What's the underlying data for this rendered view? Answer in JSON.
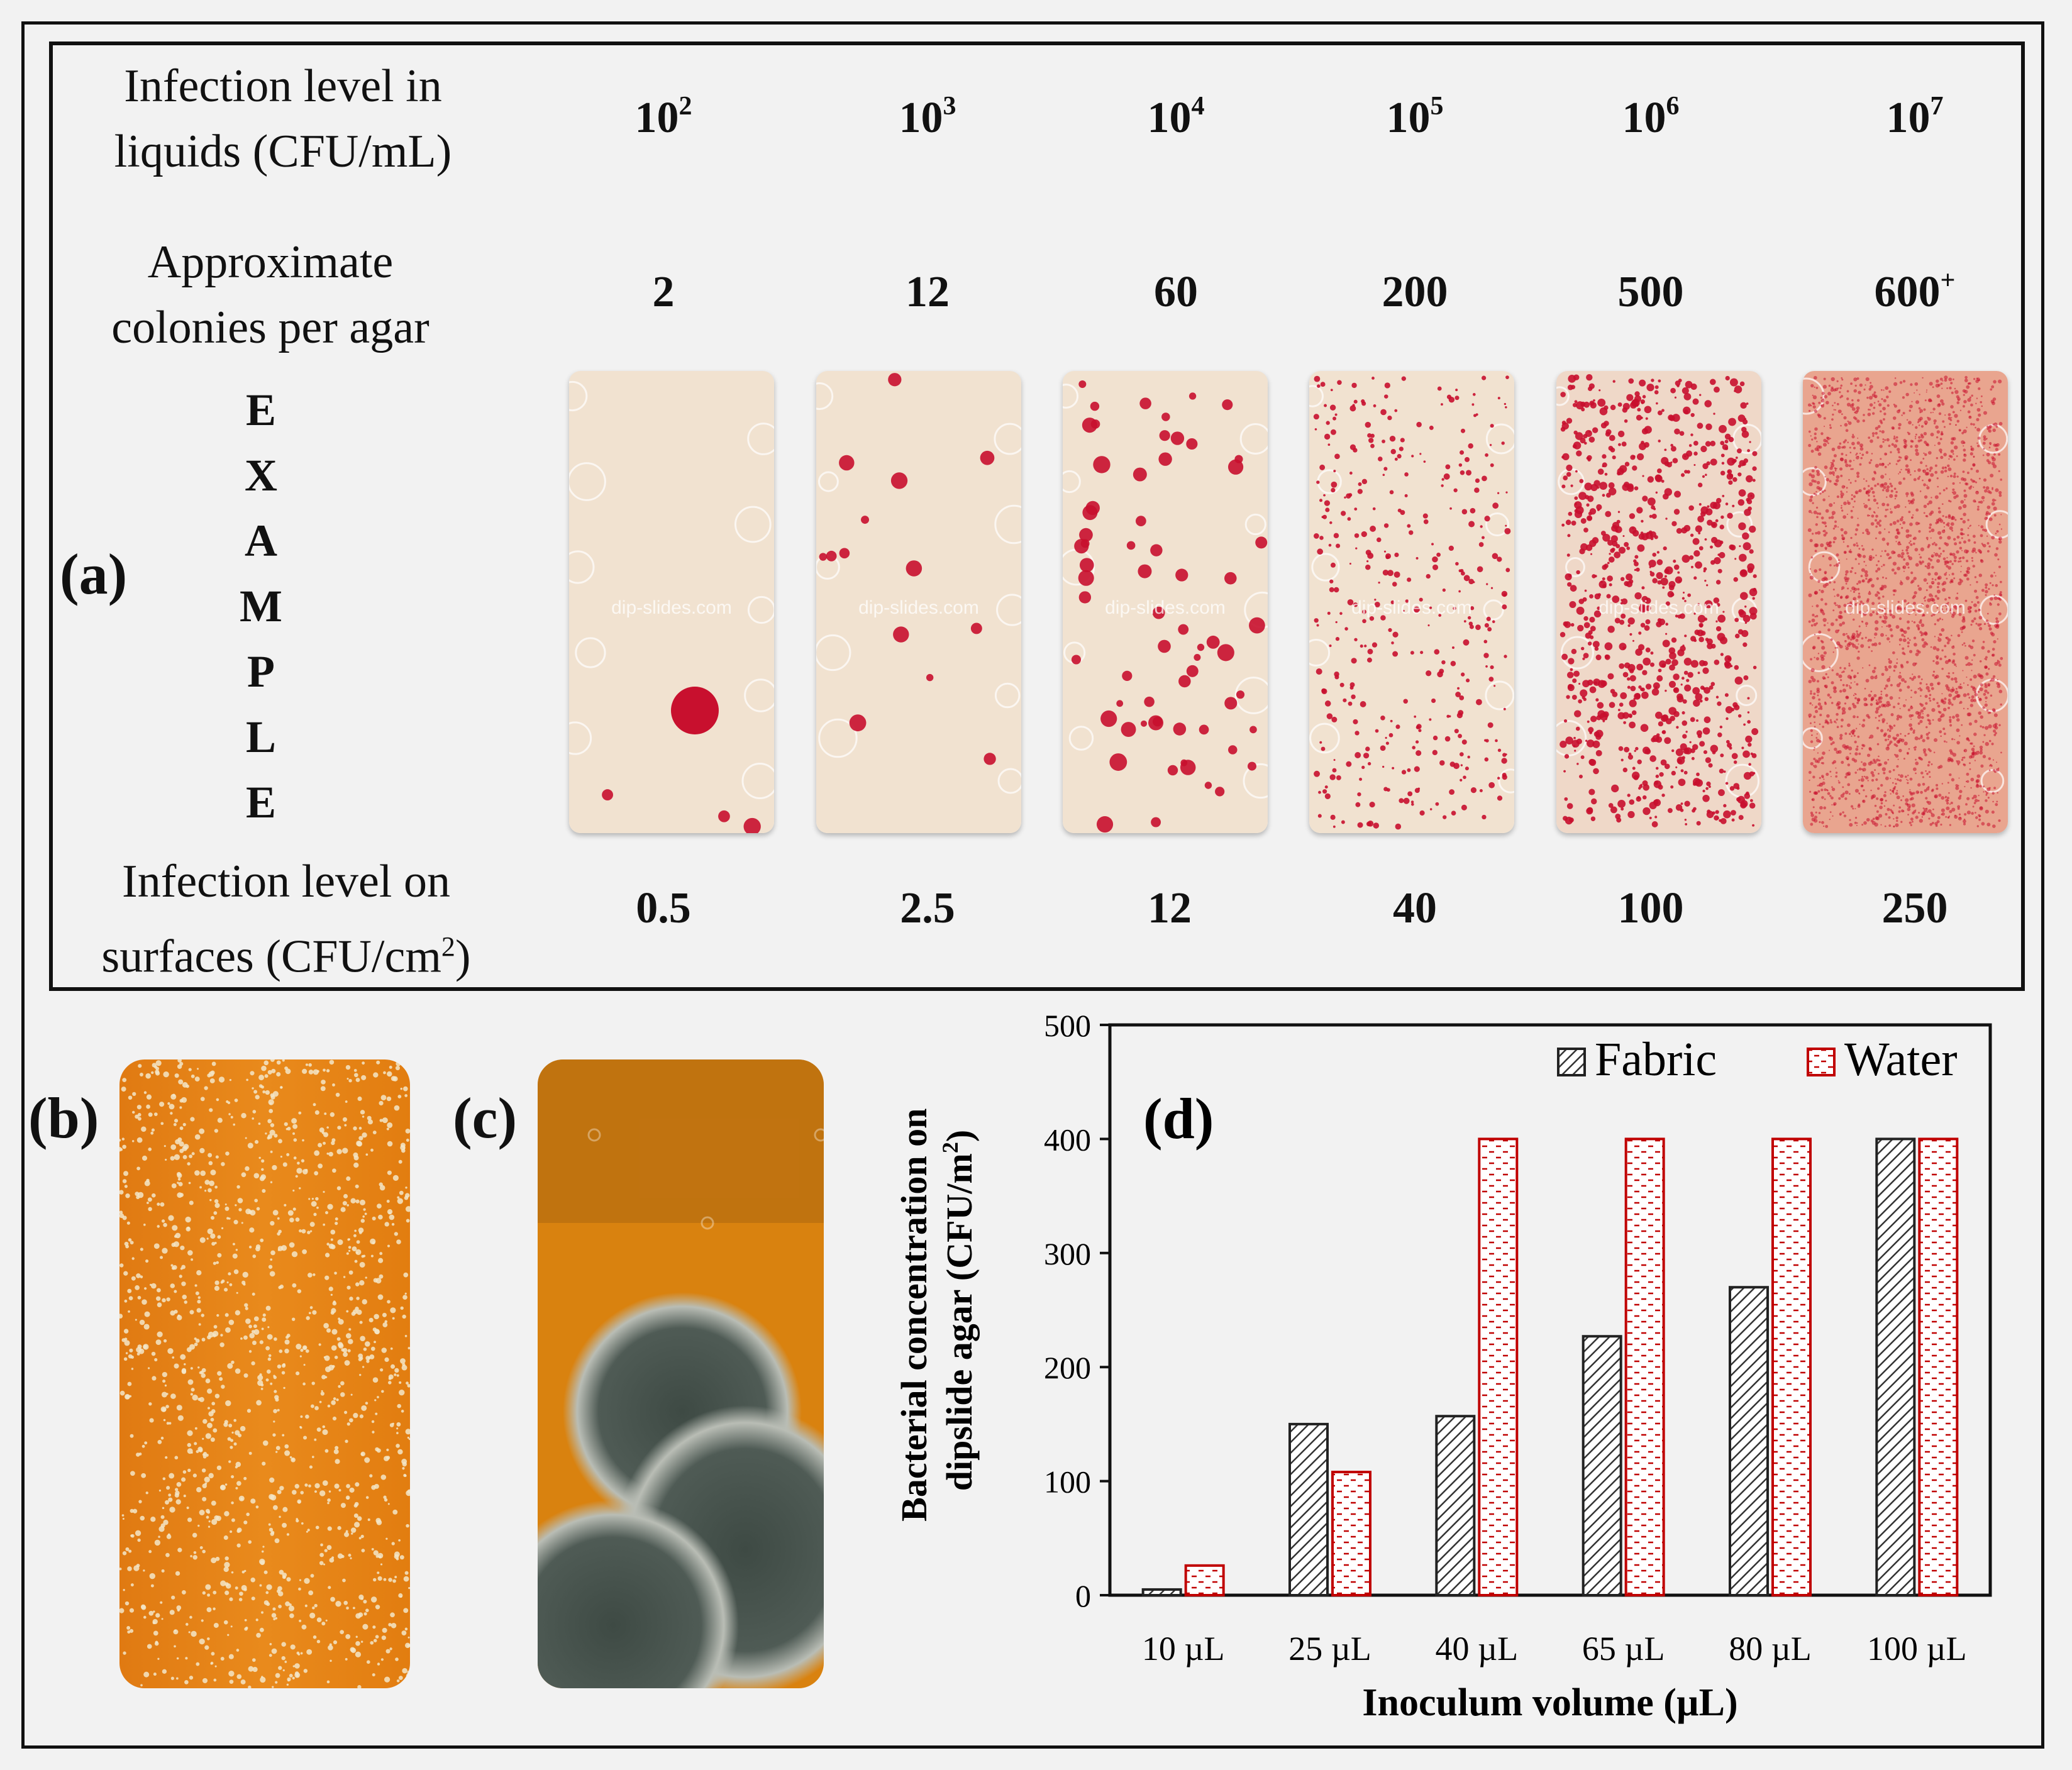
{
  "panel_a": {
    "label": "(a)",
    "row_liquids": {
      "line1": "Infection level in",
      "line2": "liquids (CFU/mL)"
    },
    "row_colonies": {
      "line1": "Approximate",
      "line2": "colonies per agar"
    },
    "row_surfaces": {
      "line1": "Infection level on",
      "line2_text": "surfaces (CFU/cm",
      "line2_sup": "2",
      "line2_close": ")"
    },
    "example_letters": [
      "E",
      "X",
      "A",
      "M",
      "P",
      "L",
      "E"
    ],
    "liquid_levels": [
      {
        "base": "10",
        "exp": "2"
      },
      {
        "base": "10",
        "exp": "3"
      },
      {
        "base": "10",
        "exp": "4"
      },
      {
        "base": "10",
        "exp": "5"
      },
      {
        "base": "10",
        "exp": "6"
      },
      {
        "base": "10",
        "exp": "7"
      }
    ],
    "colony_counts": [
      {
        "value": "2",
        "sup": ""
      },
      {
        "value": "12",
        "sup": ""
      },
      {
        "value": "60",
        "sup": ""
      },
      {
        "value": "200",
        "sup": ""
      },
      {
        "value": "500",
        "sup": ""
      },
      {
        "value": "600",
        "sup": "+"
      }
    ],
    "surface_levels": [
      "0.5",
      "2.5",
      "12",
      "40",
      "100",
      "250"
    ],
    "watermark": "dip-slides.com",
    "colony_color": "#c8102e",
    "agar_color": "#f1e2d0"
  },
  "panel_b": {
    "label": "(b)",
    "agar_color": "#e98a1c",
    "colony_color": "#f3e6c8"
  },
  "panel_c": {
    "label": "(c)",
    "agar_color": "#d9820f",
    "mold_color": "#3e4a44"
  },
  "chart_data": {
    "type": "bar",
    "label": "(d)",
    "title": "",
    "categories": [
      "10 µL",
      "25 µL",
      "40 µL",
      "65 µL",
      "80 µL",
      "100 µL"
    ],
    "series": [
      {
        "name": "Fabric",
        "values": [
          5,
          150,
          157,
          227,
          270,
          400
        ],
        "color": "#333333",
        "pattern": "diagonal-hatch"
      },
      {
        "name": "Water",
        "values": [
          26,
          108,
          400,
          400,
          400,
          400
        ],
        "color": "#c00000",
        "pattern": "dashed-fill"
      }
    ],
    "xlabel": "Inoculum volume (µL)",
    "ylabel_line1": "Bacterial concentration on",
    "ylabel_line2_text": "dipslide agar (CFU/m",
    "ylabel_line2_sup": "2",
    "ylabel_line2_close": ")",
    "ylim": [
      0,
      500
    ],
    "yticks": [
      0,
      100,
      200,
      300,
      400,
      500
    ],
    "legend_position": "top-right",
    "grid": false
  }
}
